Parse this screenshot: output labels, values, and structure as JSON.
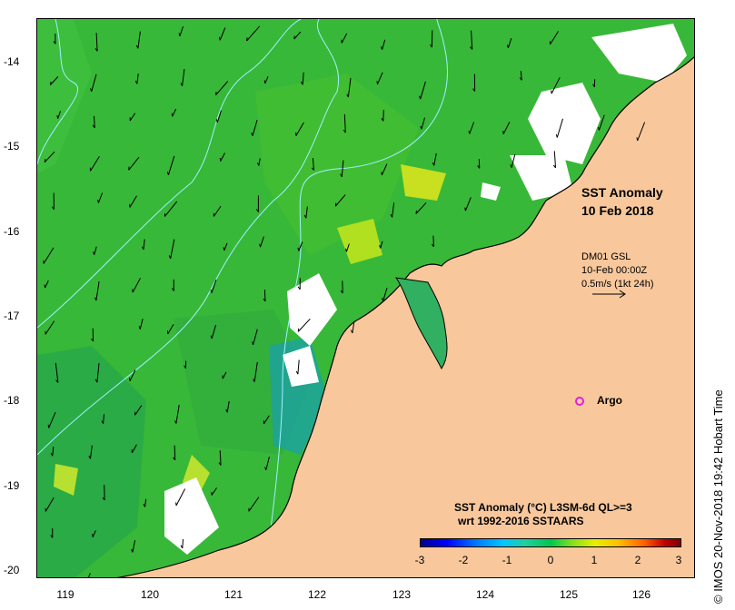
{
  "map": {
    "title_line1": "SST Anomaly",
    "title_line2": "10 Feb 2018",
    "current_source": "DM01 GSL",
    "current_time": "10-Feb 00:00Z",
    "current_scale": "0.5m/s (1kt 24h)",
    "argo_label": "Argo",
    "side_caption": "© IMOS 20-Nov-2018 19:42 Hobart Time",
    "colors": {
      "land": "#f8c89c",
      "ocean": "#3cb838",
      "anomaly_zero_green": "#20c840",
      "cloud": "#ffffff",
      "isobath": "#a0f0ff",
      "argo": "#e020e0"
    }
  },
  "axes": {
    "latitude_ticks": [
      "-14",
      "-15",
      "-16",
      "-17",
      "-18",
      "-19",
      "-20"
    ],
    "longitude_ticks": [
      "119",
      "120",
      "121",
      "122",
      "123",
      "124",
      "125",
      "126"
    ]
  },
  "colorbar": {
    "title_line1": "SST Anomaly (°C) L3SM-6d QL>=3",
    "title_line2": "wrt 1992-2016 SSTAARS",
    "ticks": [
      "-3",
      "-2",
      "-1",
      "0",
      "1",
      "2",
      "3"
    ],
    "range": [
      -3,
      3
    ]
  }
}
